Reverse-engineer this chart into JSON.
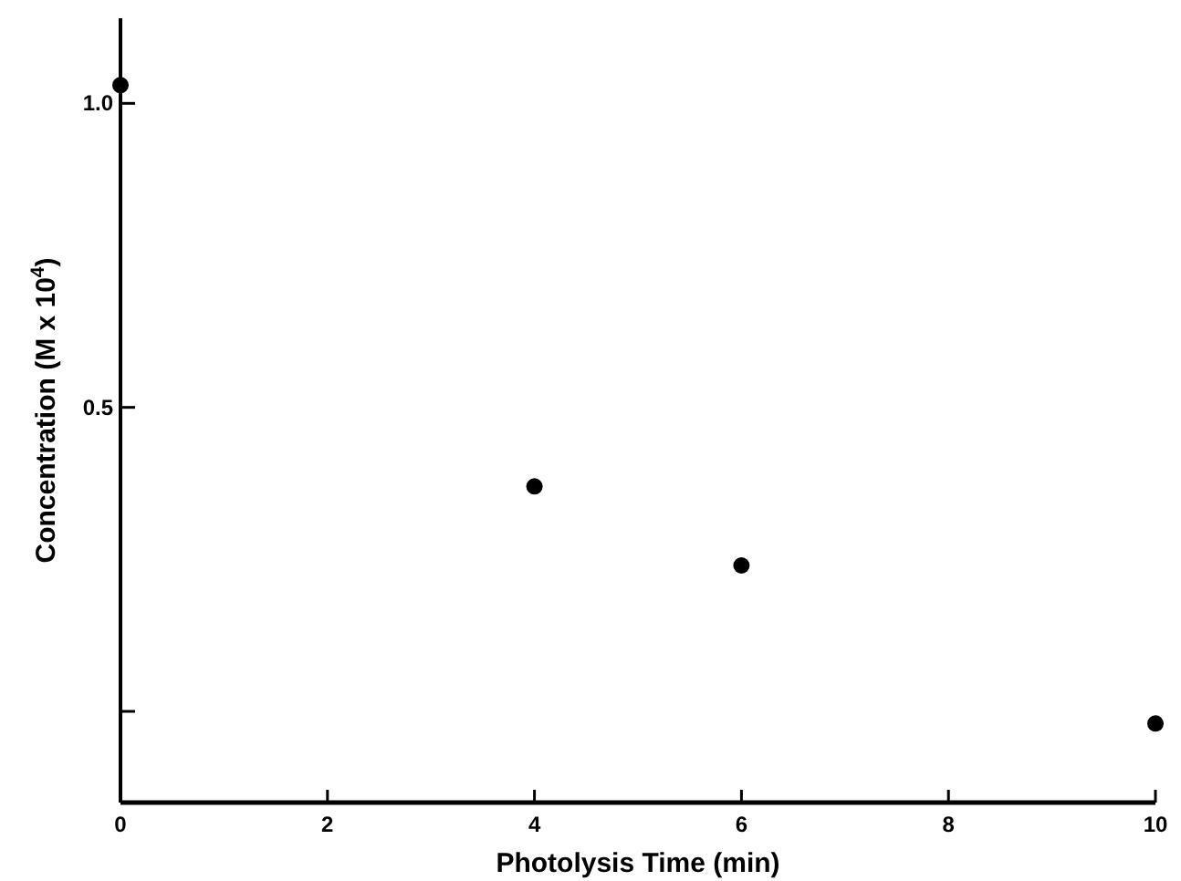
{
  "chart_data": {
    "type": "scatter",
    "xlabel": "Photolysis Time (min)",
    "ylabel": "Concentration (M x 10$^{4}$)",
    "x": [
      0,
      4,
      6,
      10
    ],
    "values": [
      1.03,
      0.37,
      0.24,
      -0.02
    ],
    "color": "#000000",
    "marker": "circle",
    "xlim": [
      0,
      10
    ],
    "xticks": [
      0,
      2,
      4,
      6,
      8,
      10
    ],
    "ylim": [
      -0.15,
      1.14
    ],
    "yticks": [
      {
        "value": 0,
        "label": null
      },
      0.5,
      {
        "value": 1,
        "label": "1.0"
      }
    ],
    "grid": false
  }
}
